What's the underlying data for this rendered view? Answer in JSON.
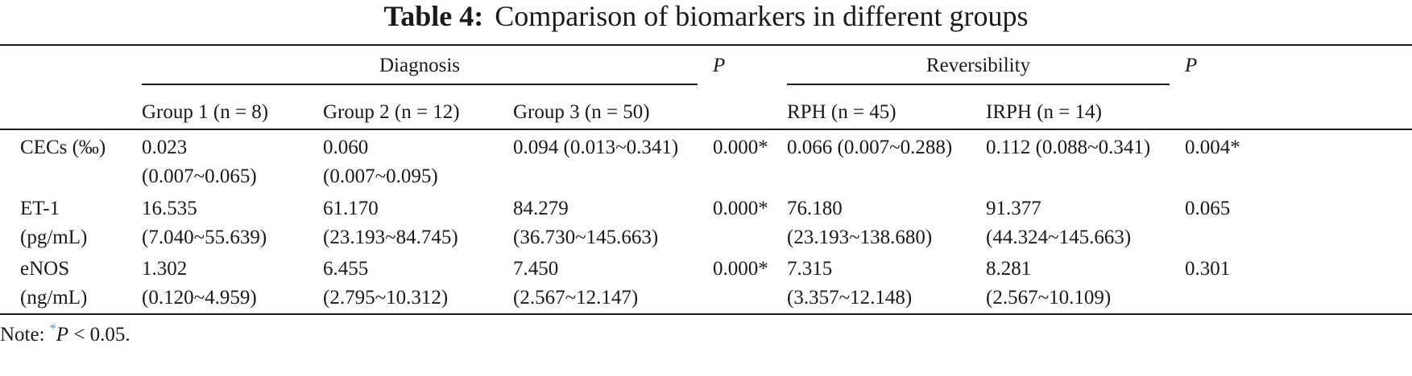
{
  "table": {
    "label": "Table 4:",
    "title": "Comparison of biomarkers in different groups",
    "header": {
      "diagnosis": "Diagnosis",
      "p1": "P",
      "reversibility": "Reversibility",
      "p2": "P",
      "cols": [
        "Group 1 (n = 8)",
        "Group 2 (n = 12)",
        "Group 3 (n = 50)",
        "RPH (n = 45)",
        "IRPH (n = 14)"
      ]
    },
    "rows": [
      {
        "name": [
          "CECs (‰)"
        ],
        "g1": [
          "0.023",
          "(0.007~0.065)"
        ],
        "g2": [
          "0.060",
          "(0.007~0.095)"
        ],
        "g3": [
          "0.094 (0.013~0.341)"
        ],
        "p1": "0.000*",
        "rph": [
          "0.066 (0.007~0.288)"
        ],
        "irph": [
          "0.112 (0.088~0.341)"
        ],
        "p2": "0.004*"
      },
      {
        "name": [
          "ET-1",
          "(pg/mL)"
        ],
        "g1": [
          "16.535",
          "(7.040~55.639)"
        ],
        "g2": [
          "61.170",
          "(23.193~84.745)"
        ],
        "g3": [
          "84.279",
          "(36.730~145.663)"
        ],
        "p1": "0.000*",
        "rph": [
          "76.180",
          "(23.193~138.680)"
        ],
        "irph": [
          "91.377",
          "(44.324~145.663)"
        ],
        "p2": "0.065"
      },
      {
        "name": [
          "eNOS",
          "(ng/mL)"
        ],
        "g1": [
          "1.302",
          "(0.120~4.959)"
        ],
        "g2": [
          "6.455",
          "(2.795~10.312)"
        ],
        "g3": [
          "7.450",
          "(2.567~12.147)"
        ],
        "p1": "0.000*",
        "rph": [
          "7.315",
          "(3.357~12.148)"
        ],
        "irph": [
          "8.281",
          "(2.567~10.109)"
        ],
        "p2": "0.301"
      }
    ],
    "note": {
      "prefix": "Note:",
      "star": "*",
      "p": "P",
      "rest": "< 0.05."
    }
  }
}
